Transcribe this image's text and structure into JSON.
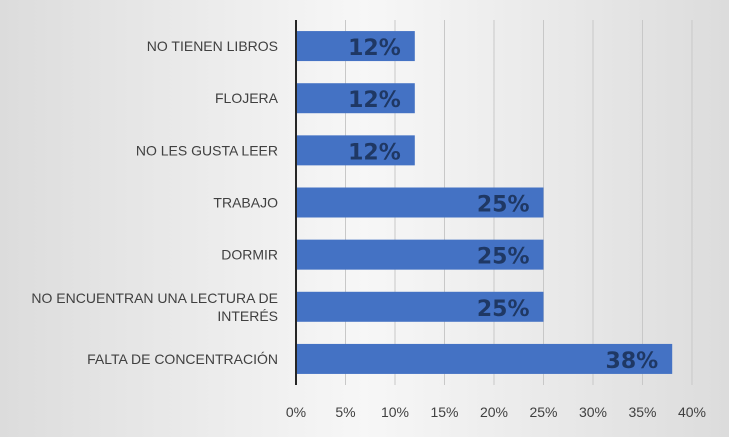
{
  "chart_data": {
    "type": "bar",
    "orientation": "horizontal",
    "categories": [
      "NO TIENEN LIBROS",
      "FLOJERA",
      "NO LES GUSTA LEER",
      "TRABAJO",
      "DORMIR",
      "NO ENCUENTRAN UNA LECTURA DE INTERÉS",
      "FALTA DE CONCENTRACIÓN"
    ],
    "category_lines": [
      [
        "NO TIENEN LIBROS"
      ],
      [
        "FLOJERA"
      ],
      [
        "NO LES GUSTA LEER"
      ],
      [
        "TRABAJO"
      ],
      [
        "DORMIR"
      ],
      [
        "NO ENCUENTRAN UNA LECTURA DE",
        "INTERÉS"
      ],
      [
        "FALTA DE CONCENTRACIÓN"
      ]
    ],
    "values": [
      12,
      12,
      12,
      25,
      25,
      25,
      38
    ],
    "value_labels": [
      "12%",
      "12%",
      "12%",
      "25%",
      "25%",
      "25%",
      "38%"
    ],
    "xlim": [
      0,
      40
    ],
    "x_ticks": [
      0,
      5,
      10,
      15,
      20,
      25,
      30,
      35,
      40
    ],
    "x_tick_labels": [
      "0%",
      "5%",
      "10%",
      "15%",
      "20%",
      "25%",
      "30%",
      "35%",
      "40%"
    ],
    "title": "",
    "xlabel": "",
    "ylabel": "",
    "grid": true,
    "legend": "none",
    "colors": {
      "bar": "#4472c4",
      "data_label": "#1f3864",
      "grid": "#c8c8c8",
      "axis": "#262626",
      "text": "#404040"
    }
  }
}
